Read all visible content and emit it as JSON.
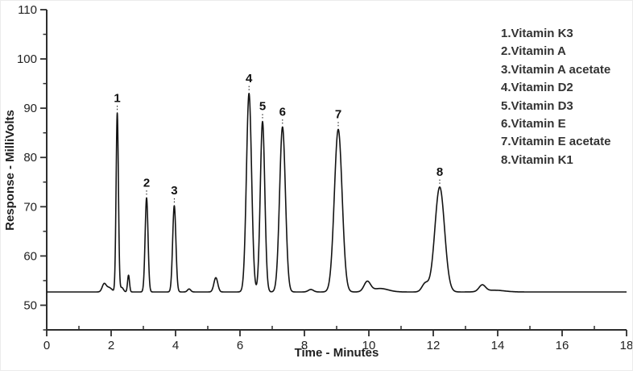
{
  "style": {
    "background": "#ffffff",
    "trace_color": "#131313",
    "axis_color": "#2e2e2e",
    "tick_label_color": "#222222",
    "axis_title_color": "#1f1f1f",
    "peak_label_color": "#111111",
    "legend_color": "#333333"
  },
  "chart_data": {
    "type": "line",
    "subtype": "hplc-chromatogram",
    "title": "",
    "xlabel": "Time - Minutes",
    "ylabel": "Response - MilliVolts",
    "xlim": [
      0,
      18
    ],
    "ylim": [
      45,
      110
    ],
    "x_major_ticks": [
      0,
      2,
      4,
      6,
      8,
      10,
      12,
      14,
      16,
      18
    ],
    "x_minor_ticks": [
      1,
      3,
      5,
      7,
      9,
      11,
      13,
      15,
      17
    ],
    "y_major_ticks": [
      50,
      60,
      70,
      80,
      90,
      100,
      110
    ],
    "y_minor_ticks": [
      45,
      55,
      65,
      75,
      85,
      95,
      105
    ],
    "grid": false,
    "baseline_mv": 52.7,
    "peaks": [
      {
        "label": "1",
        "name": "Vitamin K3",
        "retention_time_min": 2.19,
        "apex_mv": 89.0,
        "sigma_min": 0.036
      },
      {
        "label": "2",
        "name": "Vitamin A",
        "retention_time_min": 3.1,
        "apex_mv": 71.8,
        "sigma_min": 0.045
      },
      {
        "label": "3",
        "name": "Vitamin A acetate",
        "retention_time_min": 3.96,
        "apex_mv": 70.2,
        "sigma_min": 0.05
      },
      {
        "label": "4",
        "name": "Vitamin D2",
        "retention_time_min": 6.28,
        "apex_mv": 93.0,
        "sigma_min": 0.08
      },
      {
        "label": "5",
        "name": "Vitamin D3",
        "retention_time_min": 6.7,
        "apex_mv": 87.3,
        "sigma_min": 0.07
      },
      {
        "label": "6",
        "name": "Vitamin E",
        "retention_time_min": 7.32,
        "apex_mv": 86.2,
        "sigma_min": 0.09
      },
      {
        "label": "7",
        "name": "Vitamin E acetate",
        "retention_time_min": 9.05,
        "apex_mv": 85.7,
        "sigma_min": 0.12
      },
      {
        "label": "8",
        "name": "Vitamin K1",
        "retention_time_min": 12.2,
        "apex_mv": 74.0,
        "sigma_min": 0.15
      }
    ],
    "minor_baseline_features": [
      {
        "t_min": 1.78,
        "amp_mv": 1.5,
        "sigma_min": 0.06
      },
      {
        "t_min": 1.93,
        "amp_mv": 0.9,
        "sigma_min": 0.09
      },
      {
        "t_min": 2.33,
        "amp_mv": 0.9,
        "sigma_min": 0.05
      },
      {
        "t_min": 2.54,
        "amp_mv": 3.4,
        "sigma_min": 0.03
      },
      {
        "t_min": 4.42,
        "amp_mv": 0.6,
        "sigma_min": 0.05
      },
      {
        "t_min": 5.25,
        "amp_mv": 2.9,
        "sigma_min": 0.06
      },
      {
        "t_min": 8.2,
        "amp_mv": 0.5,
        "sigma_min": 0.08
      },
      {
        "t_min": 9.95,
        "amp_mv": 2.0,
        "sigma_min": 0.1
      },
      {
        "t_min": 10.35,
        "amp_mv": 0.7,
        "sigma_min": 0.25
      },
      {
        "t_min": 11.75,
        "amp_mv": 1.7,
        "sigma_min": 0.1
      },
      {
        "t_min": 13.52,
        "amp_mv": 1.3,
        "sigma_min": 0.1
      },
      {
        "t_min": 13.9,
        "amp_mv": 0.35,
        "sigma_min": 0.3
      }
    ],
    "legend_position": "top-right",
    "legend": [
      "1.Vitamin K3",
      "2.Vitamin A",
      "3.Vitamin A acetate",
      "4.Vitamin D2",
      "5.Vitamin D3",
      "6.Vitamin E",
      "7.Vitamin E acetate",
      "8.Vitamin K1"
    ]
  }
}
